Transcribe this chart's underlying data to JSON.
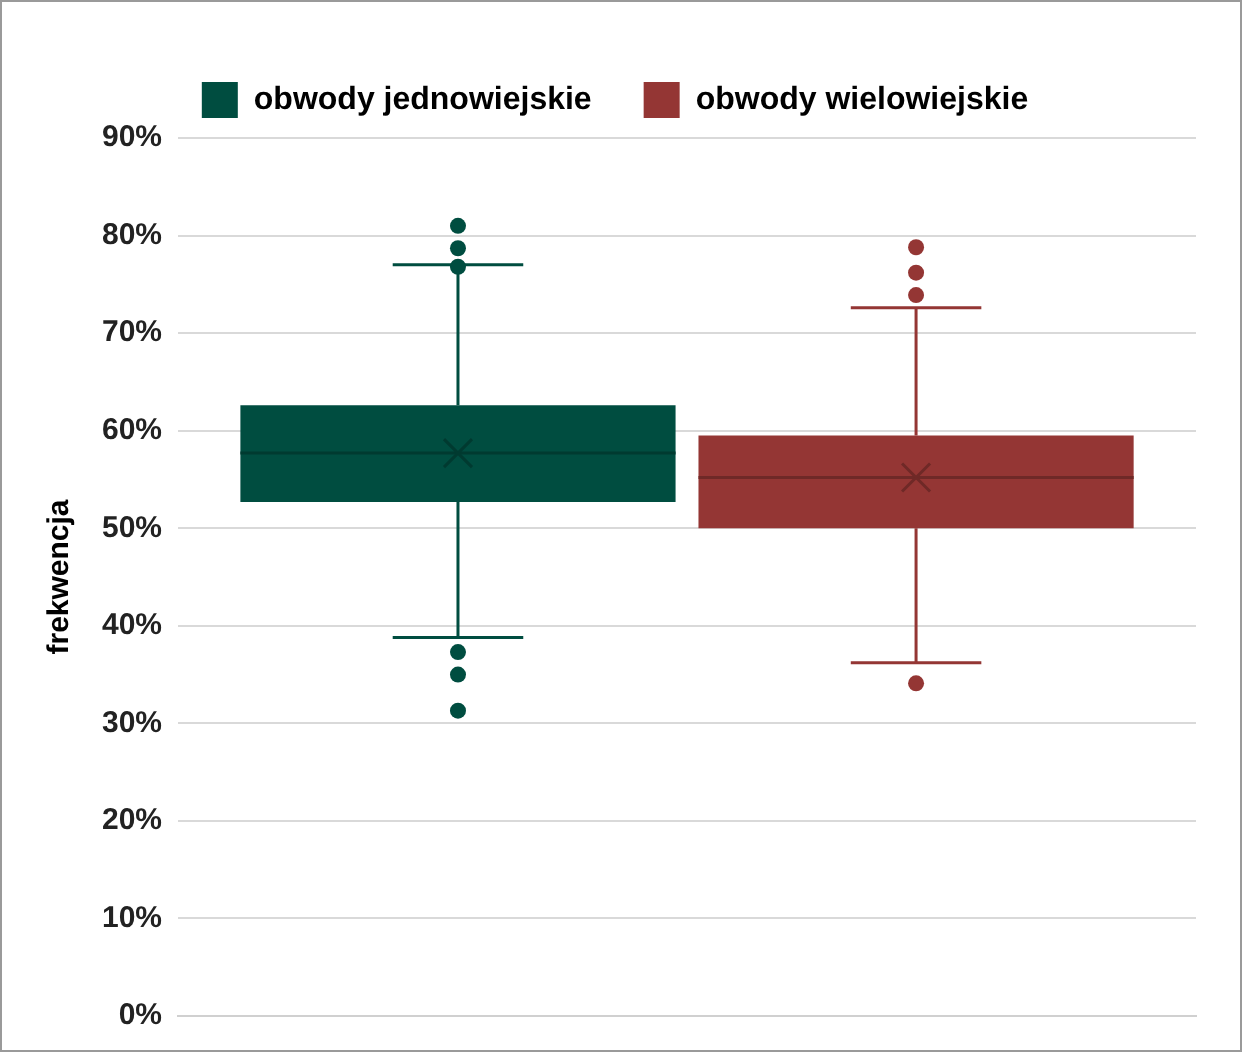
{
  "chart_data": {
    "type": "box",
    "ylabel": "frekwencja",
    "categories": [
      null
    ],
    "series": [
      {
        "name": "obwody jednowiejskie",
        "color": "#004d40",
        "boxes": [
          {
            "low": 38.8,
            "q1": 52.7,
            "median": 57.7,
            "q3": 62.6,
            "high": 77,
            "mean": 57.7,
            "outliers": [
              81,
              78.7,
              76.8,
              37.3,
              35,
              31.3
            ]
          }
        ]
      },
      {
        "name": "obwody wielowiejskie",
        "color": "#943634",
        "boxes": [
          {
            "low": 36.2,
            "q1": 50,
            "median": 55.2,
            "q3": 59.5,
            "high": 72.6,
            "mean": 55.2,
            "outliers": [
              78.8,
              76.2,
              73.9,
              34.1
            ]
          }
        ]
      }
    ],
    "ylim": [
      0,
      90
    ],
    "yticks": [
      {
        "value": 0,
        "label": "0%"
      },
      {
        "value": 10,
        "label": "10%"
      },
      {
        "value": 20,
        "label": "20%"
      },
      {
        "value": 30,
        "label": "30%"
      },
      {
        "value": 40,
        "label": "40%"
      },
      {
        "value": 50,
        "label": "50%"
      },
      {
        "value": 60,
        "label": "60%"
      },
      {
        "value": 70,
        "label": "70%"
      },
      {
        "value": 80,
        "label": "80%"
      },
      {
        "value": 90,
        "label": "90%"
      }
    ],
    "grid": "y",
    "legend": "top",
    "tick_labels": "y"
  }
}
